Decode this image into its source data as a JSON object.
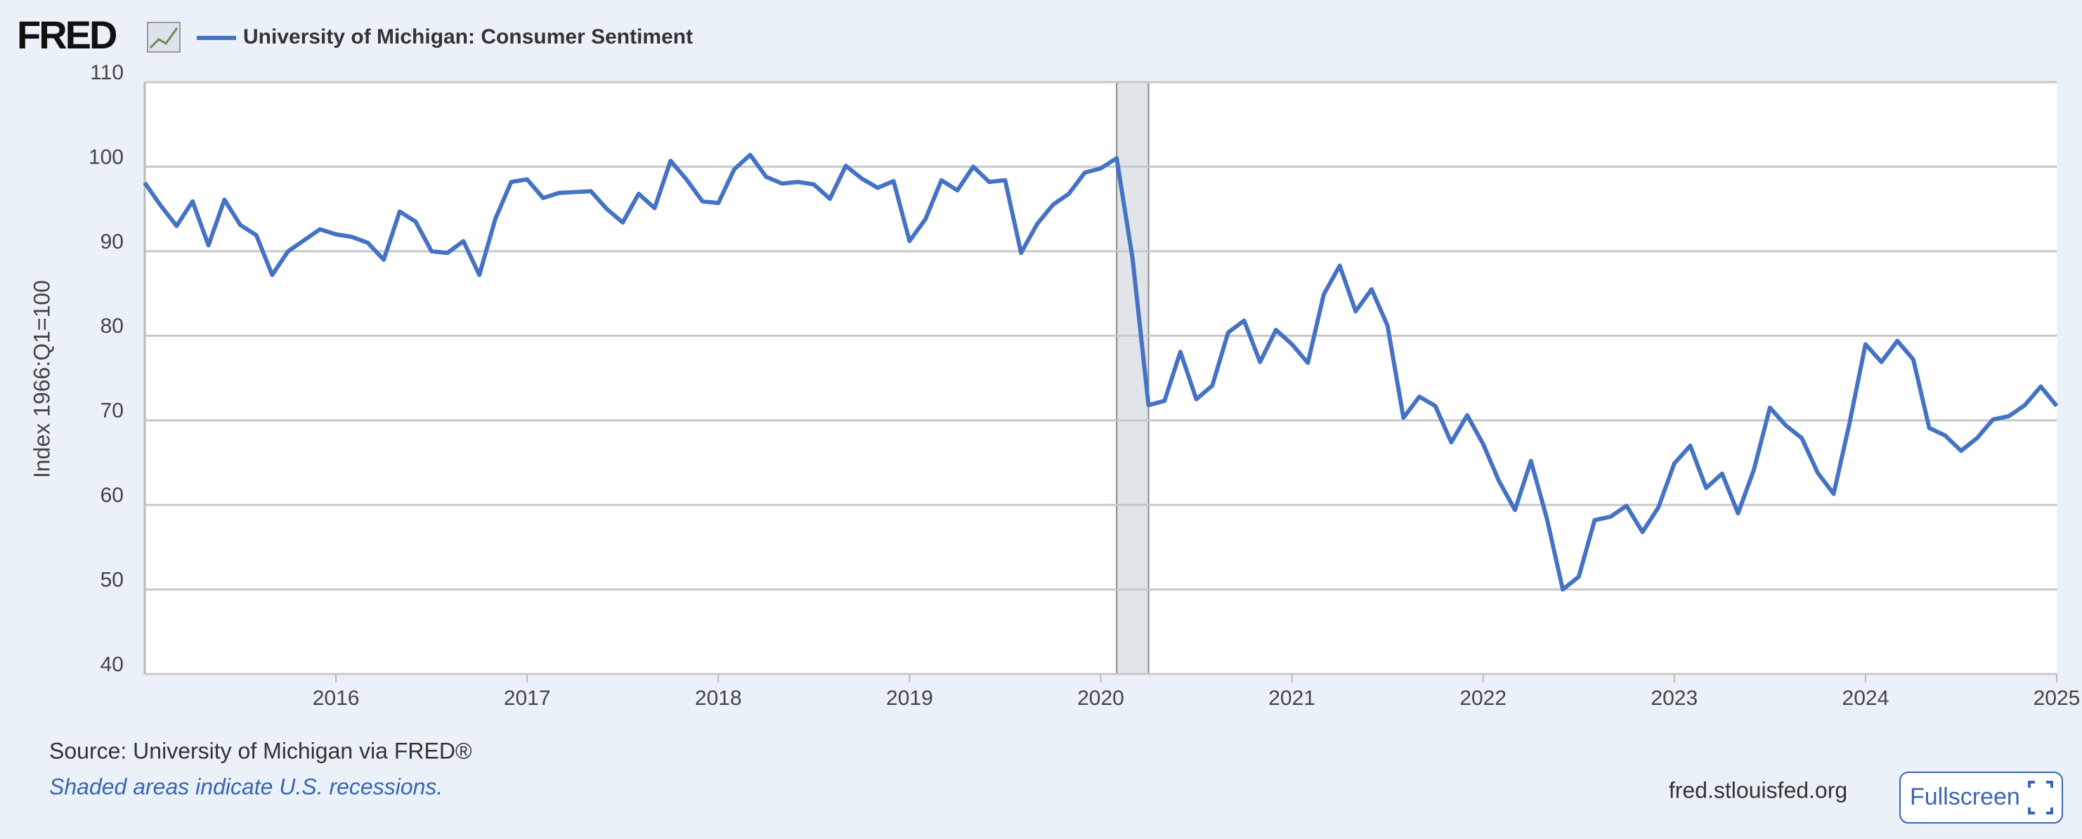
{
  "logo": "FRED",
  "chart_data": {
    "type": "line",
    "y_label": "Index 1966:Q1=100",
    "x": [
      "2015-01",
      "2015-02",
      "2015-03",
      "2015-04",
      "2015-05",
      "2015-06",
      "2015-07",
      "2015-08",
      "2015-09",
      "2015-10",
      "2015-11",
      "2015-12",
      "2016-01",
      "2016-02",
      "2016-03",
      "2016-04",
      "2016-05",
      "2016-06",
      "2016-07",
      "2016-08",
      "2016-09",
      "2016-10",
      "2016-11",
      "2016-12",
      "2017-01",
      "2017-02",
      "2017-03",
      "2017-04",
      "2017-05",
      "2017-06",
      "2017-07",
      "2017-08",
      "2017-09",
      "2017-10",
      "2017-11",
      "2017-12",
      "2018-01",
      "2018-02",
      "2018-03",
      "2018-04",
      "2018-05",
      "2018-06",
      "2018-07",
      "2018-08",
      "2018-09",
      "2018-10",
      "2018-11",
      "2018-12",
      "2019-01",
      "2019-02",
      "2019-03",
      "2019-04",
      "2019-05",
      "2019-06",
      "2019-07",
      "2019-08",
      "2019-09",
      "2019-10",
      "2019-11",
      "2019-12",
      "2020-01",
      "2020-02",
      "2020-03",
      "2020-04",
      "2020-05",
      "2020-06",
      "2020-07",
      "2020-08",
      "2020-09",
      "2020-10",
      "2020-11",
      "2020-12",
      "2021-01",
      "2021-02",
      "2021-03",
      "2021-04",
      "2021-05",
      "2021-06",
      "2021-07",
      "2021-08",
      "2021-09",
      "2021-10",
      "2021-11",
      "2021-12",
      "2022-01",
      "2022-02",
      "2022-03",
      "2022-04",
      "2022-05",
      "2022-06",
      "2022-07",
      "2022-08",
      "2022-09",
      "2022-10",
      "2022-11",
      "2022-12",
      "2023-01",
      "2023-02",
      "2023-03",
      "2023-04",
      "2023-05",
      "2023-06",
      "2023-07",
      "2023-08",
      "2023-09",
      "2023-10",
      "2023-11",
      "2023-12",
      "2024-01",
      "2024-02",
      "2024-03",
      "2024-04",
      "2024-05",
      "2024-06",
      "2024-07",
      "2024-08",
      "2024-09",
      "2024-10",
      "2024-11",
      "2024-12",
      "2025-01"
    ],
    "series": [
      {
        "name": "University of Michigan: Consumer Sentiment",
        "color": "#4472c4",
        "values": [
          98.1,
          95.4,
          93.0,
          95.9,
          90.7,
          96.1,
          93.1,
          91.9,
          87.2,
          90.0,
          91.3,
          92.6,
          92.0,
          91.7,
          91.0,
          89.0,
          94.7,
          93.5,
          90.0,
          89.8,
          91.2,
          87.2,
          93.8,
          98.2,
          98.5,
          96.3,
          96.9,
          97.0,
          97.1,
          95.0,
          93.4,
          96.8,
          95.1,
          100.7,
          98.5,
          95.9,
          95.7,
          99.7,
          101.4,
          98.8,
          98.0,
          98.2,
          97.9,
          96.2,
          100.1,
          98.6,
          97.5,
          98.3,
          91.2,
          93.8,
          98.4,
          97.2,
          100.0,
          98.2,
          98.4,
          89.8,
          93.2,
          95.5,
          96.8,
          99.3,
          99.8,
          101.0,
          89.1,
          71.8,
          72.3,
          78.1,
          72.5,
          74.1,
          80.4,
          81.8,
          76.9,
          80.7,
          79.0,
          76.8,
          84.9,
          88.3,
          82.9,
          85.5,
          81.2,
          70.3,
          72.8,
          71.7,
          67.4,
          70.6,
          67.2,
          62.8,
          59.4,
          65.2,
          58.4,
          50.0,
          51.5,
          58.2,
          58.6,
          59.9,
          56.8,
          59.7,
          64.9,
          67.0,
          62.0,
          63.7,
          59.0,
          64.2,
          71.5,
          69.4,
          67.9,
          63.8,
          61.3,
          69.7,
          79.0,
          76.9,
          79.4,
          77.2,
          69.1,
          68.2,
          66.4,
          67.9,
          70.1,
          70.5,
          71.8,
          74.0,
          71.7
        ]
      }
    ],
    "recessions": [
      {
        "start": "2020-02",
        "end": "2020-04"
      }
    ],
    "xlim": [
      "2015-01",
      "2025-01"
    ],
    "xticks": [
      2016,
      2017,
      2018,
      2019,
      2020,
      2021,
      2022,
      2023,
      2024,
      2025
    ],
    "ylim": [
      40,
      110
    ],
    "yticks": [
      40,
      50,
      60,
      70,
      80,
      90,
      100,
      110
    ],
    "grid": true
  },
  "footer": {
    "source": "Source: University of Michigan via FRED®",
    "note": "Shaded areas indicate U.S. recessions.",
    "url": "fred.stlouisfed.org",
    "button": "Fullscreen"
  }
}
